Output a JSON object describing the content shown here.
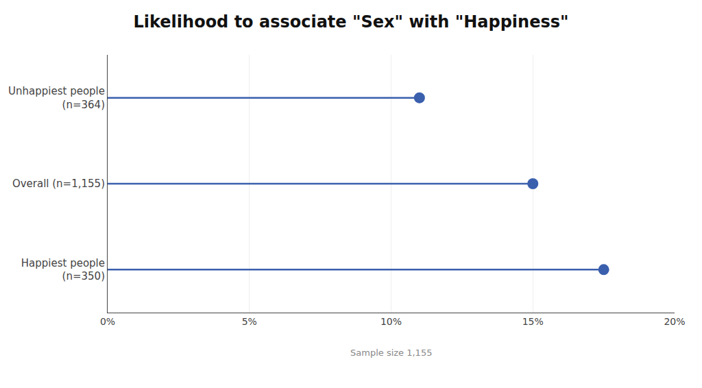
{
  "chart_data": {
    "type": "lollipop",
    "orientation": "horizontal",
    "title": "Likelihood to associate \"Sex\" with \"Happiness\"",
    "categories": [
      "Happiest people\n(n=350)",
      "Overall (n=1,155)",
      "Unhappiest people\n(n=364)"
    ],
    "values": [
      17.5,
      15.0,
      11.0
    ],
    "color": "#3a5fad",
    "xlim": [
      0,
      20
    ],
    "xticks": [
      {
        "value": 0,
        "label": "0%"
      },
      {
        "value": 5,
        "label": "5%"
      },
      {
        "value": 10,
        "label": "10%"
      },
      {
        "value": 15,
        "label": "15%"
      },
      {
        "value": 20,
        "label": "20%"
      }
    ],
    "grid": true,
    "annotations": [
      "Sample size 1,155"
    ]
  }
}
